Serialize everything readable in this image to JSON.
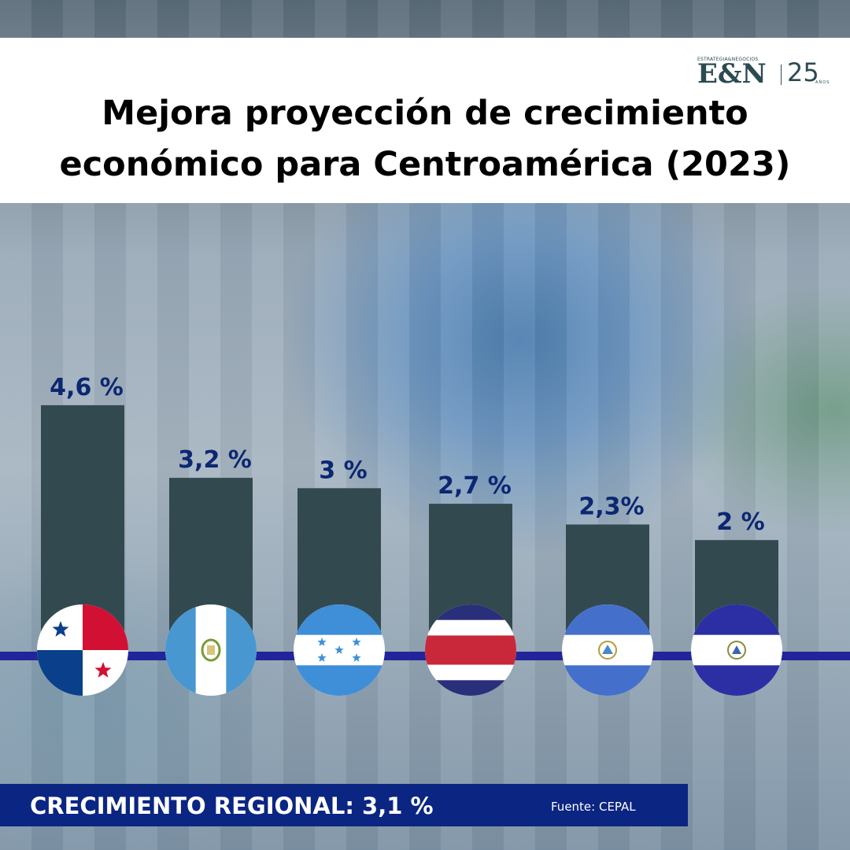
{
  "title": "Mejora proyección de crecimiento económico para Centroamérica (2023)",
  "logo": {
    "superscript": "ESTRATEGIA&NEGOCIOS",
    "mark": "E&N",
    "years": "25",
    "years_caption": "AÑOS"
  },
  "chart_data": {
    "type": "bar",
    "categories": [
      "Panamá",
      "Guatemala",
      "Honduras",
      "Costa Rica",
      "Nicaragua",
      "El Salvador"
    ],
    "values": [
      4.6,
      3.2,
      3.0,
      2.7,
      2.3,
      2.0
    ],
    "value_labels": [
      "4,6 %",
      "3,2 %",
      "3 %",
      "2,7 %",
      "2,3%",
      "2 %"
    ],
    "xlabel": "",
    "ylabel": "",
    "grid": false,
    "colors": {
      "bar": "#334950",
      "value_label": "#0c2772",
      "baseline": "#22259a"
    },
    "category_icons": [
      "panama-flag",
      "guatemala-flag",
      "honduras-flag",
      "costa-rica-flag",
      "nicaragua-flag",
      "el-salvador-flag"
    ]
  },
  "footer": {
    "regional_label": "CRECIMIENTO REGIONAL: 3,1 %",
    "source": "Fuente: CEPAL"
  }
}
